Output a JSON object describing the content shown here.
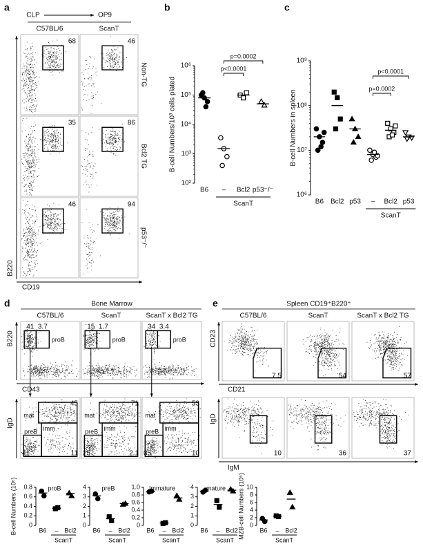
{
  "panel_a": {
    "label": "a",
    "header_from": "CLP",
    "header_to": "OP9",
    "columns": [
      "C57BL/6",
      "ScanT"
    ],
    "rows": [
      "Non-TG",
      "Bcl2 TG",
      "p53⁻/⁻"
    ],
    "gate_values": [
      [
        68,
        46
      ],
      [
        35,
        86
      ],
      [
        46,
        94
      ]
    ],
    "y_axis": "B220",
    "x_axis": "CD19"
  },
  "panel_d": {
    "label": "d",
    "header": "Bone Marrow",
    "columns": [
      "C57BL/6",
      "ScanT",
      "ScanT x Bcl2 TG"
    ],
    "top_gate": "proB",
    "top_values": [
      [
        41,
        3.7
      ],
      [
        15,
        1.7
      ],
      [
        34,
        3.4
      ]
    ],
    "top_y_axis": "B220",
    "top_x_axis": "CD43",
    "bottom_gates": [
      "mat",
      "preB",
      "imm"
    ],
    "bottom_values": [
      [
        45,
        41,
        11
      ],
      [
        71,
        25,
        2.1
      ],
      [
        53,
        35,
        10
      ]
    ],
    "bottom_y_axis": "IgD"
  },
  "panel_e": {
    "label": "e",
    "header": "Spleen CD19⁺B220⁺",
    "columns": [
      "C57BL/6",
      "ScanT",
      "ScanT x Bcl2 TG"
    ],
    "top_values": [
      7.5,
      54,
      57
    ],
    "top_y_axis": "CD23",
    "top_x_axis": "CD21",
    "bottom_values": [
      10,
      36,
      37
    ],
    "bottom_y_axis": "IgD",
    "bottom_x_axis": "IgM"
  },
  "chart_data": [
    {
      "type": "dot",
      "panel": "b",
      "y_label": "B-cell Numbers/10³ cells plated",
      "categories": [
        "B6",
        "–",
        "Bcl2",
        "p53⁻/⁻"
      ],
      "group_label": "ScanT",
      "ylog": true,
      "ylim": [
        100,
        1000000
      ],
      "yticks": [
        {
          "value": 100,
          "label": "10²"
        },
        {
          "value": 1000,
          "label": "10³"
        },
        {
          "value": 10000,
          "label": "10⁴"
        },
        {
          "value": 100000,
          "label": "10⁵"
        },
        {
          "value": 1000000,
          "label": "10⁶"
        }
      ],
      "color": "#000000",
      "markers": [
        "circle-filled",
        "circle-open",
        "square-open",
        "triangle-open"
      ],
      "points": [
        [
          100000,
          80000,
          60000,
          120000,
          40000
        ],
        [
          3500,
          1500,
          800,
          400
        ],
        [
          100000,
          80000,
          120000
        ],
        [
          60000,
          45000
        ]
      ],
      "means": [
        80000,
        1500,
        100000,
        50000
      ],
      "annotations": [
        "p=0.0002",
        "p<0.0001"
      ]
    },
    {
      "type": "dot",
      "panel": "c",
      "y_label": "B-cell Numbers in spleen",
      "categories": [
        "B6",
        "Bcl2",
        "p53",
        "–",
        "Bcl2",
        "p53"
      ],
      "group_label": "ScanT",
      "ylog": true,
      "ylim": [
        1000000,
        1000000000
      ],
      "yticks": [
        {
          "value": 1000000,
          "label": "10⁶"
        },
        {
          "value": 10000000,
          "label": "10⁷"
        },
        {
          "value": 100000000,
          "label": "10⁸"
        },
        {
          "value": 1000000000,
          "label": "10⁹"
        }
      ],
      "color": "#000000",
      "markers": [
        "circle-filled",
        "square-filled",
        "triangle-filled",
        "circle-open",
        "square-open",
        "triangle-down-open"
      ],
      "points": [
        [
          30000000,
          20000000,
          15000000,
          10000000,
          12000000,
          25000000
        ],
        [
          200000000,
          150000000,
          50000000,
          30000000
        ],
        [
          50000000,
          30000000,
          20000000,
          15000000
        ],
        [
          10000000,
          8000000,
          7000000,
          6000000,
          9000000,
          7500000
        ],
        [
          40000000,
          30000000,
          25000000,
          20000000,
          22000000,
          35000000
        ],
        [
          25000000,
          20000000,
          19000000,
          18000000
        ]
      ],
      "means": [
        20000000,
        100000000,
        30000000,
        8000000,
        28000000,
        20000000
      ],
      "annotations": [
        "p<0.0001",
        "p=0.0002"
      ]
    },
    {
      "type": "dot",
      "title": "proB",
      "y_label": "B-cell Numbers (10⁶)",
      "categories": [
        "B6",
        "–",
        "Bcl2"
      ],
      "group_label": "ScanT",
      "ylim": [
        0,
        0.8
      ],
      "yticks": [
        0,
        0.2,
        0.4,
        0.6,
        0.8
      ],
      "color": "#000000",
      "markers": [
        "circle-filled",
        "square-filled",
        "triangle-filled"
      ],
      "points": [
        [
          0.72,
          0.62
        ],
        [
          0.35,
          0.37
        ],
        [
          0.68,
          0.62
        ]
      ],
      "means": [
        0.68,
        0.36,
        0.67
      ]
    },
    {
      "type": "dot",
      "title": "preB",
      "categories": [
        "B6",
        "–",
        "Bcl2"
      ],
      "group_label": "ScanT",
      "ylim": [
        0,
        4
      ],
      "yticks": [
        0,
        1,
        2,
        3,
        4
      ],
      "color": "#000000",
      "markers": [
        "circle-filled",
        "square-filled",
        "triangle-filled"
      ],
      "points": [
        [
          3.3,
          2.8
        ],
        [
          0.9,
          0.5
        ],
        [
          2.2,
          2.3
        ]
      ],
      "means": [
        3.1,
        0.7,
        2.3
      ]
    },
    {
      "type": "dot",
      "title": "Immature",
      "categories": [
        "B6",
        "–",
        "Bcl2"
      ],
      "group_label": "ScanT",
      "ylim": [
        0,
        1
      ],
      "yticks": [
        0,
        0.2,
        0.4,
        0.6,
        0.8,
        {
          "value": 1,
          "label": "1.0"
        }
      ],
      "color": "#000000",
      "markers": [
        "circle-filled",
        "square-filled",
        "triangle-filled"
      ],
      "points": [
        [
          0.88,
          0.9
        ],
        [
          0.05,
          0.07
        ],
        [
          0.78,
          0.68
        ]
      ],
      "means": [
        0.89,
        0.06,
        0.72
      ]
    },
    {
      "type": "dot",
      "title": "mature",
      "categories": [
        "B6",
        "–",
        "Bcl2"
      ],
      "group_label": "ScanT",
      "ylim": [
        0,
        4
      ],
      "yticks": [
        0,
        1,
        2,
        3,
        4
      ],
      "color": "#000000",
      "markers": [
        "circle-filled",
        "square-filled",
        "triangle-filled"
      ],
      "points": [
        [
          3.5,
          3.7
        ],
        [
          2.6,
          1.9
        ],
        [
          3.8,
          3.6
        ]
      ],
      "means": [
        3.6,
        2.2,
        3.7
      ]
    },
    {
      "type": "dot",
      "y_label": "MZB-cell Numbers (10⁶)",
      "categories": [
        "B6",
        "–",
        "Bcl2"
      ],
      "group_label": "ScanT",
      "ylim": [
        0,
        10
      ],
      "yticks": [
        0,
        2,
        4,
        6,
        8,
        10
      ],
      "color": "#000000",
      "markers": [
        "circle-filled",
        "square-filled",
        "triangle-filled"
      ],
      "points": [
        [
          1.8,
          1.0
        ],
        [
          2.5,
          2.3
        ],
        [
          8.6,
          4.8
        ]
      ],
      "means": [
        1.4,
        2.4,
        6.9
      ]
    }
  ]
}
